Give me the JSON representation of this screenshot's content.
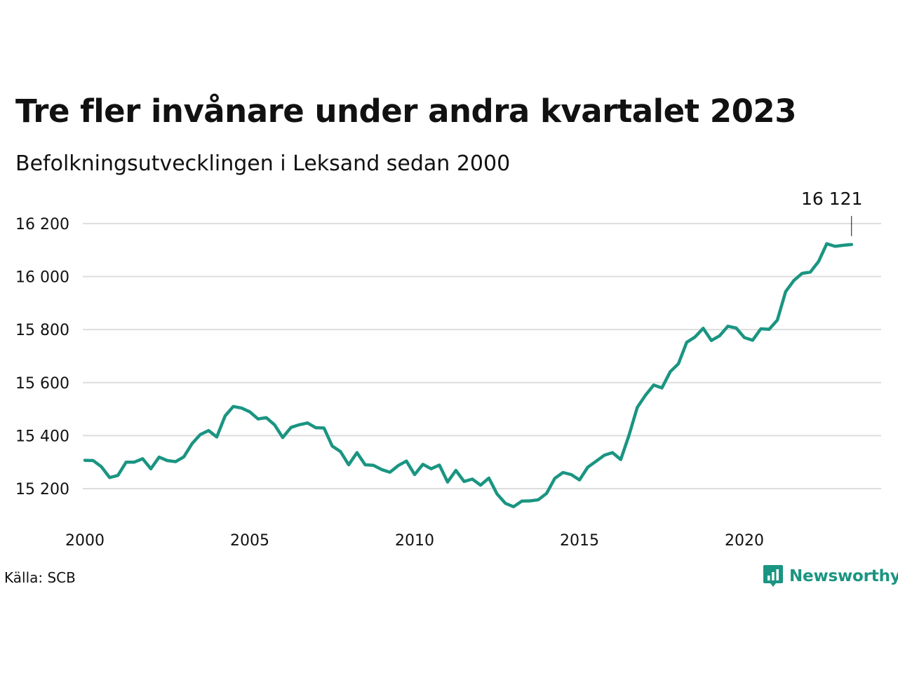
{
  "header": {
    "title": "Tre fler invånare under andra kvartalet 2023",
    "subtitle": "Befolkningsutvecklingen i Leksand sedan 2000"
  },
  "footer": {
    "source": "Källa: SCB",
    "brand": "Newsworthy",
    "brand_icon": "newsworthy-logo-icon"
  },
  "colors": {
    "line": "#1a9582",
    "grid": "#dddddd",
    "text": "#111111",
    "brand": "#1a9582"
  },
  "chart_data": {
    "type": "line",
    "title": "Tre fler invånare under andra kvartalet 2023",
    "subtitle": "Befolkningsutvecklingen i Leksand sedan 2000",
    "xlabel": "",
    "ylabel": "",
    "x_range": [
      2000,
      2024.4
    ],
    "ylim": [
      15060,
      16250
    ],
    "y_ticks": [
      15200,
      15400,
      15600,
      15800,
      16000,
      16200
    ],
    "y_tick_labels": [
      "15 200",
      "15 400",
      "15 600",
      "15 800",
      "16 000",
      "16 200"
    ],
    "x_ticks": [
      2000,
      2005,
      2010,
      2015,
      2020
    ],
    "x_tick_labels": [
      "2000",
      "2005",
      "2010",
      "2015",
      "2020"
    ],
    "grid": "horizontal",
    "annotation": {
      "label": "16 121",
      "x": 2023.25,
      "y": 16121
    },
    "series": [
      {
        "x": [
          2000.0,
          2000.25,
          2000.5,
          2000.75,
          2001.0,
          2001.25,
          2001.5,
          2001.75,
          2002.0,
          2002.25,
          2002.5,
          2002.75,
          2003.0,
          2003.25,
          2003.5,
          2003.75,
          2004.0,
          2004.25,
          2004.5,
          2004.75,
          2005.0,
          2005.25,
          2005.5,
          2005.75,
          2006.0,
          2006.25,
          2006.5,
          2006.75,
          2007.0,
          2007.25,
          2007.5,
          2007.75,
          2008.0,
          2008.25,
          2008.5,
          2008.75,
          2009.0,
          2009.25,
          2009.5,
          2009.75,
          2010.0,
          2010.25,
          2010.5,
          2010.75,
          2011.0,
          2011.25,
          2011.5,
          2011.75,
          2012.0,
          2012.25,
          2012.5,
          2012.75,
          2013.0,
          2013.25,
          2013.5,
          2013.75,
          2014.0,
          2014.25,
          2014.5,
          2014.75,
          2015.0,
          2015.25,
          2015.5,
          2015.75,
          2016.0,
          2016.25,
          2016.5,
          2016.75,
          2017.0,
          2017.25,
          2017.5,
          2017.75,
          2018.0,
          2018.25,
          2018.5,
          2018.75,
          2019.0,
          2019.25,
          2019.5,
          2019.75,
          2020.0,
          2020.25,
          2020.5,
          2020.75,
          2021.0,
          2021.25,
          2021.5,
          2021.75,
          2022.0,
          2022.25,
          2022.5,
          2022.75,
          2023.0,
          2023.25
        ],
        "values": [
          15307,
          15306,
          15283,
          15242,
          15250,
          15300,
          15300,
          15313,
          15275,
          15319,
          15306,
          15302,
          15320,
          15370,
          15404,
          15419,
          15395,
          15474,
          15510,
          15504,
          15490,
          15463,
          15468,
          15441,
          15393,
          15431,
          15441,
          15448,
          15430,
          15429,
          15361,
          15340,
          15290,
          15336,
          15290,
          15288,
          15272,
          15262,
          15287,
          15304,
          15253,
          15292,
          15275,
          15289,
          15225,
          15269,
          15227,
          15236,
          15213,
          15240,
          15180,
          15145,
          15132,
          15153,
          15154,
          15158,
          15182,
          15239,
          15261,
          15253,
          15233,
          15281,
          15303,
          15326,
          15336,
          15310,
          15401,
          15506,
          15552,
          15591,
          15580,
          15641,
          15671,
          15752,
          15772,
          15805,
          15759,
          15777,
          15813,
          15806,
          15770,
          15760,
          15803,
          15801,
          15836,
          15943,
          15985,
          16012,
          16017,
          16057,
          16124,
          16114,
          16118,
          16121
        ]
      }
    ]
  }
}
